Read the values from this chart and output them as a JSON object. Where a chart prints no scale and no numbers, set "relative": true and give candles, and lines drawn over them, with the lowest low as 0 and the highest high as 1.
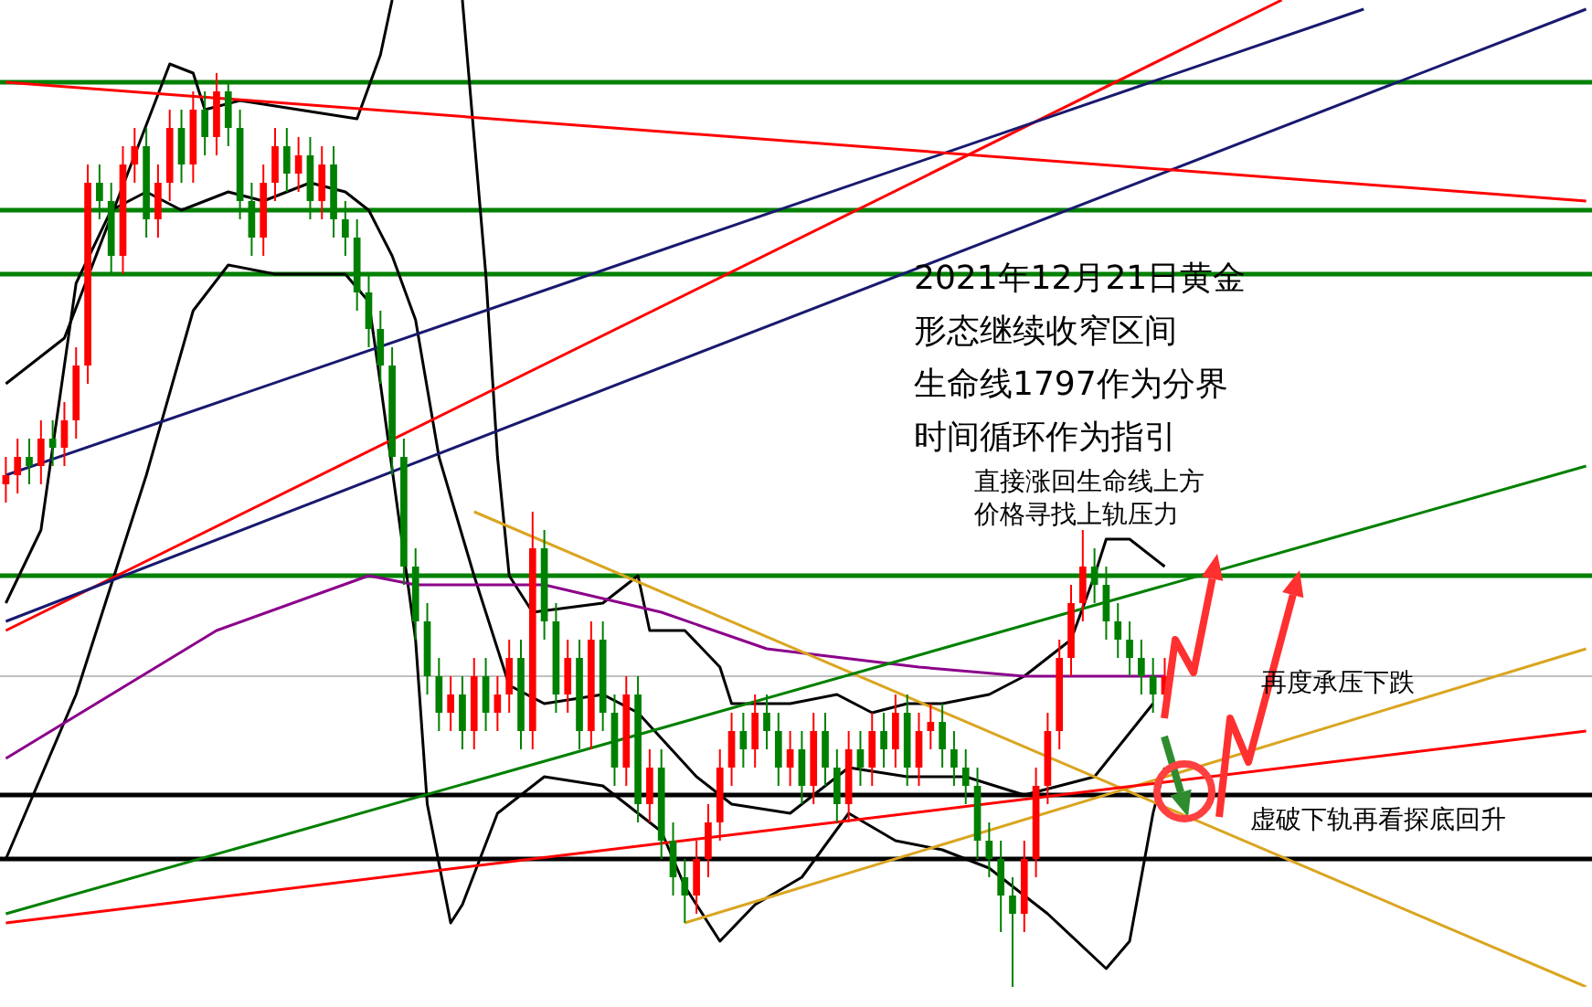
{
  "chart_data": {
    "type": "candlestick",
    "relative": true,
    "categories": [
      null,
      null,
      null,
      null,
      null,
      null,
      null,
      null,
      null,
      null,
      null,
      null,
      null,
      null,
      null,
      null,
      null,
      null,
      null,
      null,
      null,
      null,
      null,
      null,
      null,
      null,
      null,
      null,
      null,
      null,
      null,
      null,
      null,
      null,
      null,
      null,
      null,
      null,
      null,
      null,
      null,
      null,
      null,
      null,
      null,
      null,
      null,
      null,
      null,
      null,
      null,
      null,
      null,
      null,
      null,
      null,
      null,
      null,
      null,
      null,
      null,
      null,
      null,
      null,
      null,
      null,
      null,
      null,
      null,
      null,
      null,
      null,
      null,
      null,
      null,
      null,
      null,
      null,
      null,
      null,
      null,
      null,
      null,
      null,
      null,
      null,
      null,
      null,
      null,
      null,
      null,
      null,
      null,
      null,
      null,
      null,
      null,
      null,
      null,
      null,
      null,
      null,
      null,
      null,
      null,
      null,
      null,
      null,
      null,
      null,
      null,
      null,
      null,
      null,
      null,
      null,
      null,
      null,
      null,
      null,
      null,
      null,
      null,
      null,
      null,
      null,
      null,
      null,
      null,
      null,
      null,
      null,
      null,
      null,
      null,
      null
    ],
    "ohlc": [
      [
        0.55,
        0.58,
        0.53,
        0.56
      ],
      [
        0.56,
        0.6,
        0.54,
        0.58
      ],
      [
        0.58,
        0.6,
        0.55,
        0.57
      ],
      [
        0.57,
        0.62,
        0.55,
        0.6
      ],
      [
        0.6,
        0.62,
        0.57,
        0.59
      ],
      [
        0.59,
        0.64,
        0.57,
        0.62
      ],
      [
        0.62,
        0.7,
        0.6,
        0.68
      ],
      [
        0.68,
        0.9,
        0.66,
        0.88
      ],
      [
        0.88,
        0.9,
        0.84,
        0.86
      ],
      [
        0.86,
        0.88,
        0.78,
        0.8
      ],
      [
        0.8,
        0.92,
        0.78,
        0.9
      ],
      [
        0.9,
        0.94,
        0.88,
        0.92
      ],
      [
        0.92,
        0.94,
        0.82,
        0.84
      ],
      [
        0.84,
        0.9,
        0.82,
        0.88
      ],
      [
        0.88,
        0.96,
        0.86,
        0.94
      ],
      [
        0.94,
        0.96,
        0.88,
        0.9
      ],
      [
        0.9,
        0.98,
        0.88,
        0.96
      ],
      [
        0.96,
        0.98,
        0.91,
        0.93
      ],
      [
        0.93,
        1.0,
        0.91,
        0.98
      ],
      [
        0.98,
        0.99,
        0.92,
        0.94
      ],
      [
        0.94,
        0.96,
        0.84,
        0.86
      ],
      [
        0.86,
        0.88,
        0.8,
        0.82
      ],
      [
        0.82,
        0.9,
        0.8,
        0.88
      ],
      [
        0.88,
        0.94,
        0.86,
        0.92
      ],
      [
        0.92,
        0.94,
        0.87,
        0.89
      ],
      [
        0.89,
        0.93,
        0.87,
        0.91
      ],
      [
        0.91,
        0.93,
        0.84,
        0.86
      ],
      [
        0.86,
        0.92,
        0.84,
        0.9
      ],
      [
        0.9,
        0.92,
        0.82,
        0.84
      ],
      [
        0.84,
        0.86,
        0.8,
        0.82
      ],
      [
        0.82,
        0.84,
        0.74,
        0.76
      ],
      [
        0.76,
        0.78,
        0.7,
        0.72
      ],
      [
        0.72,
        0.74,
        0.66,
        0.68
      ],
      [
        0.68,
        0.7,
        0.56,
        0.58
      ],
      [
        0.58,
        0.6,
        0.44,
        0.46
      ],
      [
        0.46,
        0.48,
        0.38,
        0.4
      ],
      [
        0.4,
        0.42,
        0.32,
        0.34
      ],
      [
        0.34,
        0.36,
        0.28,
        0.3
      ],
      [
        0.3,
        0.34,
        0.28,
        0.32
      ],
      [
        0.32,
        0.34,
        0.26,
        0.28
      ],
      [
        0.28,
        0.36,
        0.26,
        0.34
      ],
      [
        0.34,
        0.36,
        0.28,
        0.3
      ],
      [
        0.3,
        0.34,
        0.28,
        0.32
      ],
      [
        0.32,
        0.38,
        0.3,
        0.36
      ],
      [
        0.36,
        0.38,
        0.26,
        0.28
      ],
      [
        0.28,
        0.52,
        0.26,
        0.48
      ],
      [
        0.48,
        0.5,
        0.38,
        0.4
      ],
      [
        0.4,
        0.42,
        0.3,
        0.32
      ],
      [
        0.32,
        0.38,
        0.3,
        0.36
      ],
      [
        0.36,
        0.38,
        0.26,
        0.28
      ],
      [
        0.28,
        0.4,
        0.26,
        0.38
      ],
      [
        0.38,
        0.4,
        0.28,
        0.3
      ],
      [
        0.3,
        0.32,
        0.22,
        0.24
      ],
      [
        0.24,
        0.34,
        0.22,
        0.32
      ],
      [
        0.32,
        0.34,
        0.18,
        0.2
      ],
      [
        0.2,
        0.26,
        0.18,
        0.24
      ],
      [
        0.24,
        0.26,
        0.14,
        0.16
      ],
      [
        0.16,
        0.18,
        0.1,
        0.12
      ],
      [
        0.12,
        0.14,
        0.07,
        0.1
      ],
      [
        0.1,
        0.16,
        0.08,
        0.14
      ],
      [
        0.14,
        0.2,
        0.12,
        0.18
      ],
      [
        0.18,
        0.26,
        0.16,
        0.24
      ],
      [
        0.24,
        0.3,
        0.22,
        0.28
      ],
      [
        0.28,
        0.3,
        0.24,
        0.26
      ],
      [
        0.26,
        0.32,
        0.24,
        0.3
      ],
      [
        0.3,
        0.32,
        0.26,
        0.28
      ],
      [
        0.28,
        0.3,
        0.22,
        0.24
      ],
      [
        0.24,
        0.28,
        0.22,
        0.26
      ],
      [
        0.26,
        0.28,
        0.2,
        0.22
      ],
      [
        0.22,
        0.3,
        0.2,
        0.28
      ],
      [
        0.28,
        0.3,
        0.22,
        0.24
      ],
      [
        0.24,
        0.26,
        0.18,
        0.2
      ],
      [
        0.2,
        0.28,
        0.18,
        0.26
      ],
      [
        0.26,
        0.28,
        0.22,
        0.24
      ],
      [
        0.24,
        0.3,
        0.22,
        0.28
      ],
      [
        0.28,
        0.3,
        0.24,
        0.26
      ],
      [
        0.26,
        0.32,
        0.24,
        0.3
      ],
      [
        0.3,
        0.32,
        0.22,
        0.24
      ],
      [
        0.24,
        0.3,
        0.22,
        0.28
      ],
      [
        0.28,
        0.31,
        0.26,
        0.29
      ],
      [
        0.29,
        0.31,
        0.24,
        0.26
      ],
      [
        0.26,
        0.28,
        0.22,
        0.24
      ],
      [
        0.24,
        0.26,
        0.2,
        0.22
      ],
      [
        0.22,
        0.24,
        0.14,
        0.16
      ],
      [
        0.16,
        0.18,
        0.12,
        0.14
      ],
      [
        0.14,
        0.16,
        0.06,
        0.1
      ],
      [
        0.1,
        0.12,
        0.0,
        0.08
      ],
      [
        0.08,
        0.16,
        0.06,
        0.14
      ],
      [
        0.14,
        0.24,
        0.12,
        0.22
      ],
      [
        0.22,
        0.3,
        0.2,
        0.28
      ],
      [
        0.28,
        0.38,
        0.26,
        0.36
      ],
      [
        0.36,
        0.44,
        0.34,
        0.42
      ],
      [
        0.42,
        0.5,
        0.4,
        0.46
      ],
      [
        0.46,
        0.48,
        0.42,
        0.44
      ],
      [
        0.44,
        0.46,
        0.38,
        0.4
      ],
      [
        0.4,
        0.42,
        0.36,
        0.38
      ],
      [
        0.38,
        0.4,
        0.34,
        0.36
      ],
      [
        0.36,
        0.38,
        0.32,
        0.34
      ],
      [
        0.34,
        0.36,
        0.3,
        0.32
      ],
      [
        0.32,
        0.36,
        0.3,
        0.34
      ],
      null,
      null,
      null,
      null,
      null,
      null,
      null,
      null,
      null,
      null,
      null,
      null,
      null,
      null,
      null,
      null,
      null,
      null,
      null,
      null,
      null,
      null,
      null,
      null,
      null,
      null,
      null,
      null,
      null,
      null,
      null,
      null,
      null,
      null,
      null,
      null
    ],
    "series": [
      {
        "type": "line",
        "color": "#ff0000",
        "values": [
          0.99,
          null,
          null,
          null,
          null,
          null,
          null,
          null,
          null,
          null,
          null,
          null,
          null,
          null,
          null,
          null,
          null,
          null,
          null,
          null,
          null,
          null,
          null,
          null,
          null,
          null,
          null,
          null,
          null,
          null,
          null,
          null,
          null,
          null,
          null,
          null,
          null,
          null,
          null,
          null,
          null,
          null,
          null,
          null,
          null,
          null,
          null,
          null,
          null,
          null,
          null,
          null,
          null,
          null,
          null,
          null,
          null,
          null,
          null,
          null,
          null,
          null,
          null,
          null,
          null,
          null,
          null,
          null,
          null,
          null,
          null,
          null,
          null,
          null,
          null,
          null,
          null,
          null,
          null,
          null,
          null,
          null,
          null,
          null,
          null,
          null,
          null,
          null,
          null,
          null,
          null,
          null,
          null,
          null,
          null,
          null,
          null,
          null,
          null,
          null,
          null,
          null,
          null,
          null,
          null,
          null,
          null,
          null,
          null,
          null,
          null,
          null,
          null,
          null,
          null,
          null,
          null,
          null,
          null,
          null,
          null,
          null,
          null,
          null,
          null,
          null,
          null,
          null,
          null,
          null,
          null,
          null,
          null,
          null,
          null,
          0.86
        ]
      },
      {
        "type": "line",
        "color": "#191970",
        "values": [
          0.56,
          null,
          null,
          null,
          null,
          null,
          null,
          null,
          null,
          null,
          null,
          null,
          null,
          null,
          null,
          null,
          null,
          null,
          null,
          null,
          null,
          null,
          null,
          null,
          null,
          null,
          null,
          null,
          null,
          null,
          null,
          null,
          null,
          null,
          null,
          null,
          null,
          null,
          null,
          null,
          null,
          null,
          null,
          null,
          null,
          null,
          null,
          null,
          null,
          null,
          null,
          null,
          null,
          null,
          null,
          null,
          null,
          null,
          null,
          null,
          null,
          null,
          null,
          null,
          null,
          null,
          null,
          null,
          null,
          null,
          null,
          null,
          null,
          null,
          null,
          null,
          null,
          null,
          null,
          null,
          null,
          null,
          null,
          null,
          null,
          null,
          null,
          null,
          null,
          null,
          null,
          null,
          null,
          null,
          null,
          null,
          null,
          null,
          null,
          null,
          null,
          null,
          null,
          null,
          null,
          null,
          null,
          null,
          null,
          null,
          null,
          null,
          null,
          null,
          null,
          null,
          1.07,
          null,
          null,
          null,
          null,
          null,
          null,
          null,
          null,
          null,
          null,
          null,
          null,
          null,
          null,
          null,
          null,
          null,
          null,
          null
        ]
      },
      {
        "type": "line",
        "color": "#191970",
        "values": [
          0.4,
          null,
          null,
          null,
          null,
          null,
          null,
          null,
          null,
          null,
          null,
          null,
          null,
          null,
          null,
          null,
          null,
          null,
          null,
          null,
          null,
          null,
          null,
          null,
          null,
          null,
          null,
          null,
          null,
          null,
          null,
          null,
          null,
          null,
          null,
          null,
          null,
          null,
          null,
          null,
          null,
          null,
          null,
          null,
          null,
          null,
          null,
          null,
          null,
          null,
          null,
          null,
          null,
          null,
          null,
          null,
          null,
          null,
          null,
          null,
          null,
          null,
          null,
          null,
          null,
          null,
          null,
          null,
          null,
          null,
          null,
          null,
          null,
          null,
          null,
          null,
          null,
          null,
          null,
          null,
          null,
          null,
          null,
          null,
          null,
          null,
          null,
          null,
          null,
          null,
          null,
          null,
          null,
          null,
          null,
          null,
          null,
          null,
          null,
          null,
          null,
          null,
          null,
          null,
          null,
          null,
          null,
          null,
          null,
          null,
          null,
          null,
          null,
          null,
          null,
          null,
          null,
          null,
          null,
          null,
          null,
          null,
          null,
          null,
          null,
          null,
          null,
          null,
          null,
          null,
          null,
          null,
          null,
          null,
          null,
          1.07
        ]
      },
      {
        "type": "line",
        "color": "#ff0000",
        "values": [
          0.39,
          null,
          null,
          null,
          null,
          null,
          null,
          null,
          null,
          null,
          null,
          null,
          null,
          null,
          null,
          null,
          null,
          null,
          null,
          null,
          null,
          null,
          null,
          null,
          null,
          null,
          null,
          null,
          null,
          null,
          null,
          null,
          null,
          null,
          null,
          null,
          null,
          null,
          null,
          null,
          null,
          null,
          null,
          null,
          null,
          null,
          null,
          null,
          null,
          null,
          null,
          null,
          null,
          null,
          null,
          null,
          null,
          null,
          null,
          null,
          null,
          null,
          null,
          null,
          null,
          null,
          null,
          null,
          null,
          null,
          null,
          null,
          null,
          null,
          null,
          null,
          null,
          null,
          null,
          null,
          null,
          null,
          null,
          null,
          null,
          null,
          null,
          null,
          null,
          null,
          null,
          null,
          null,
          null,
          null,
          null,
          null,
          null,
          null,
          null,
          null,
          null,
          null,
          null,
          null,
          null,
          null,
          null,
          null,
          1.08,
          null,
          null,
          null,
          null,
          null,
          null,
          null,
          null,
          null,
          null,
          null,
          null,
          null,
          null,
          null,
          null,
          null,
          null,
          null,
          null,
          null,
          null,
          null,
          null,
          null,
          null
        ]
      },
      {
        "type": "line",
        "color": "#008000",
        "values": [
          0.08,
          null,
          null,
          null,
          null,
          null,
          null,
          null,
          null,
          null,
          null,
          null,
          null,
          null,
          null,
          null,
          null,
          null,
          null,
          null,
          null,
          null,
          null,
          null,
          null,
          null,
          null,
          null,
          null,
          null,
          null,
          null,
          null,
          null,
          null,
          null,
          null,
          null,
          null,
          null,
          null,
          null,
          null,
          null,
          null,
          null,
          null,
          null,
          null,
          null,
          null,
          null,
          null,
          null,
          null,
          null,
          null,
          null,
          null,
          null,
          null,
          null,
          null,
          null,
          null,
          null,
          null,
          null,
          null,
          null,
          null,
          null,
          null,
          null,
          null,
          null,
          null,
          null,
          null,
          null,
          null,
          null,
          null,
          null,
          null,
          null,
          null,
          null,
          null,
          null,
          null,
          null,
          null,
          null,
          null,
          null,
          null,
          null,
          null,
          null,
          null,
          null,
          null,
          null,
          null,
          null,
          null,
          null,
          null,
          null,
          null,
          null,
          null,
          null,
          null,
          null,
          null,
          null,
          null,
          null,
          null,
          null,
          null,
          null,
          null,
          null,
          null,
          null,
          null,
          null,
          null,
          null,
          null,
          null,
          null,
          0.57
        ]
      },
      {
        "type": "line",
        "color": "#ff0000",
        "values": [
          0.07,
          null,
          null,
          null,
          null,
          null,
          null,
          null,
          null,
          null,
          null,
          null,
          null,
          null,
          null,
          null,
          null,
          null,
          null,
          null,
          null,
          null,
          null,
          null,
          null,
          null,
          null,
          null,
          null,
          null,
          null,
          null,
          null,
          null,
          null,
          null,
          null,
          null,
          null,
          null,
          null,
          null,
          null,
          null,
          null,
          null,
          null,
          null,
          null,
          null,
          null,
          null,
          null,
          null,
          null,
          null,
          null,
          null,
          null,
          null,
          null,
          null,
          null,
          null,
          null,
          null,
          null,
          null,
          null,
          null,
          null,
          null,
          null,
          null,
          null,
          null,
          null,
          null,
          null,
          null,
          null,
          null,
          null,
          null,
          null,
          null,
          null,
          null,
          null,
          null,
          null,
          null,
          null,
          null,
          null,
          null,
          null,
          null,
          null,
          null,
          null,
          null,
          null,
          null,
          null,
          null,
          null,
          null,
          null,
          null,
          null,
          null,
          null,
          null,
          null,
          null,
          null,
          null,
          null,
          null,
          null,
          null,
          null,
          null,
          null,
          null,
          null,
          null,
          null,
          null,
          null,
          null,
          null,
          null,
          null,
          0.28
        ]
      },
      {
        "type": "line",
        "color": "#daa520",
        "values": [
          null,
          null,
          null,
          null,
          null,
          null,
          null,
          null,
          null,
          null,
          null,
          null,
          null,
          null,
          null,
          null,
          null,
          null,
          null,
          null,
          null,
          null,
          null,
          null,
          null,
          null,
          null,
          null,
          null,
          null,
          null,
          null,
          null,
          null,
          null,
          null,
          null,
          null,
          null,
          null,
          0.52,
          null,
          null,
          null,
          null,
          null,
          null,
          null,
          null,
          null,
          null,
          null,
          null,
          null,
          null,
          null,
          null,
          null,
          null,
          null,
          null,
          null,
          null,
          null,
          null,
          null,
          null,
          null,
          null,
          null,
          null,
          null,
          null,
          null,
          null,
          null,
          null,
          null,
          null,
          null,
          null,
          null,
          null,
          null,
          null,
          null,
          null,
          null,
          null,
          null,
          null,
          null,
          null,
          null,
          null,
          null,
          null,
          null,
          null,
          null,
          null,
          null,
          null,
          null,
          null,
          null,
          null,
          null,
          null,
          null,
          null,
          null,
          null,
          null,
          null,
          null,
          null,
          null,
          null,
          null,
          null,
          null,
          null,
          null,
          null,
          null,
          null,
          null,
          null,
          null,
          null,
          null,
          null,
          null,
          null,
          0.0
        ]
      },
      {
        "type": "line",
        "color": "#daa520",
        "values": [
          null,
          null,
          null,
          null,
          null,
          null,
          null,
          null,
          null,
          null,
          null,
          null,
          null,
          null,
          null,
          null,
          null,
          null,
          null,
          null,
          null,
          null,
          null,
          null,
          null,
          null,
          null,
          null,
          null,
          null,
          null,
          null,
          null,
          null,
          null,
          null,
          null,
          null,
          null,
          null,
          null,
          null,
          null,
          null,
          null,
          null,
          null,
          null,
          null,
          null,
          null,
          null,
          null,
          null,
          null,
          null,
          null,
          null,
          0.07,
          null,
          null,
          null,
          null,
          null,
          null,
          null,
          null,
          null,
          null,
          null,
          null,
          null,
          null,
          null,
          null,
          null,
          null,
          null,
          null,
          null,
          null,
          null,
          null,
          null,
          null,
          null,
          null,
          null,
          null,
          null,
          null,
          null,
          null,
          null,
          null,
          null,
          null,
          null,
          null,
          null,
          null,
          null,
          null,
          null,
          null,
          null,
          null,
          null,
          null,
          null,
          null,
          null,
          null,
          null,
          null,
          null,
          null,
          null,
          null,
          null,
          null,
          null,
          null,
          null,
          null,
          null,
          null,
          null,
          null,
          null,
          null,
          null,
          null,
          null,
          null,
          0.37
        ]
      },
      {
        "type": "line",
        "color": "#8b008b",
        "values": [
          0.25,
          null,
          null,
          null,
          null,
          null,
          null,
          null,
          null,
          0.32,
          null,
          null,
          null,
          null,
          null,
          null,
          null,
          null,
          0.39,
          null,
          null,
          null,
          null,
          null,
          null,
          null,
          null,
          null,
          null,
          null,
          null,
          0.45,
          null,
          null,
          null,
          0.44,
          null,
          null,
          null,
          null,
          null,
          null,
          null,
          null,
          null,
          null,
          0.44,
          null,
          null,
          null,
          null,
          null,
          null,
          null,
          null,
          null,
          0.41,
          null,
          null,
          null,
          null,
          null,
          null,
          null,
          null,
          0.37,
          null,
          null,
          null,
          null,
          null,
          null,
          null,
          null,
          null,
          null,
          null,
          null,
          0.35,
          null,
          null,
          null,
          null,
          null,
          null,
          null,
          null,
          0.34,
          null,
          null,
          null,
          null,
          null,
          null,
          null,
          null,
          0.34,
          null,
          null,
          0.34,
          null,
          null,
          null,
          null,
          null,
          null,
          null,
          null,
          null,
          null,
          null,
          null,
          null,
          null,
          null,
          null,
          null,
          null,
          null,
          null,
          null,
          null,
          null,
          null,
          null,
          null,
          null,
          null,
          null,
          null,
          null,
          null,
          null,
          null,
          null,
          null
        ]
      },
      {
        "type": "line",
        "color": "#000000",
        "values": [
          0.66,
          null,
          null,
          null,
          null,
          0.71,
          null,
          null,
          null,
          null,
          null,
          null,
          null,
          null,
          1.01,
          null,
          1.0,
          0.96,
          null,
          null,
          0.97,
          null,
          null,
          null,
          null,
          null,
          null,
          null,
          null,
          null,
          0.95,
          null,
          1.02,
          1.08,
          null,
          null,
          null,
          null,
          null,
          null,
          null,
          null,
          null,
          null,
          null,
          null,
          null,
          null,
          null,
          null,
          null,
          null,
          null,
          null,
          null,
          null,
          null,
          null,
          null,
          null,
          null,
          null,
          null,
          null,
          null,
          null,
          null,
          null,
          null,
          null,
          null,
          null,
          null,
          null,
          null,
          null,
          null,
          null,
          null,
          null,
          null,
          null,
          null,
          null,
          null,
          null,
          null,
          null,
          null,
          null,
          null,
          null,
          null,
          null,
          null,
          null,
          null,
          null,
          null,
          null,
          null,
          null,
          null,
          null,
          null,
          null,
          null,
          null,
          null,
          null,
          null,
          null,
          null,
          null,
          null,
          null,
          null,
          null,
          null,
          null,
          null,
          null,
          null,
          null,
          null,
          null,
          null,
          null,
          null,
          null,
          null,
          null,
          null,
          null,
          null,
          null
        ]
      },
      {
        "type": "line",
        "color": "#000000",
        "values": [
          null,
          null,
          null,
          null,
          null,
          null,
          null,
          null,
          null,
          null,
          null,
          null,
          null,
          null,
          null,
          null,
          null,
          null,
          null,
          null,
          null,
          null,
          null,
          null,
          null,
          null,
          null,
          null,
          null,
          null,
          null,
          null,
          null,
          null,
          null,
          null,
          null,
          null,
          null,
          1.08,
          null,
          0.78,
          0.58,
          0.45,
          null,
          0.41,
          null,
          null,
          null,
          null,
          null,
          0.42,
          null,
          null,
          0.45,
          0.39,
          null,
          null,
          0.39,
          null,
          null,
          0.35,
          0.31,
          null,
          null,
          null,
          null,
          0.31,
          null,
          null,
          null,
          0.32,
          null,
          null,
          0.3,
          null,
          null,
          0.31,
          null,
          null,
          0.31,
          null,
          null,
          null,
          0.32,
          null,
          null,
          0.34,
          null,
          null,
          null,
          0.38,
          null,
          0.45,
          0.49,
          null,
          0.49,
          null,
          null,
          0.46,
          null,
          null,
          null,
          null,
          null,
          null,
          null,
          null,
          null,
          null,
          null,
          null,
          null,
          null,
          null,
          null,
          null,
          null,
          null,
          null,
          null,
          null,
          null,
          null,
          null,
          null,
          null,
          null,
          null,
          null,
          null,
          null,
          null,
          null,
          null,
          null
        ]
      },
      {
        "type": "line",
        "color": "#000000",
        "values": [
          0.42,
          null,
          null,
          0.5,
          null,
          null,
          0.77,
          null,
          null,
          0.85,
          null,
          null,
          0.87,
          null,
          null,
          0.85,
          null,
          null,
          null,
          0.87,
          null,
          null,
          0.86,
          null,
          null,
          null,
          0.88,
          null,
          null,
          0.87,
          null,
          0.85,
          null,
          0.8,
          null,
          0.73,
          null,
          0.58,
          null,
          null,
          0.45,
          null,
          null,
          0.33,
          null,
          null,
          0.31,
          null,
          null,
          null,
          null,
          0.32,
          null,
          null,
          0.3,
          null,
          null,
          null,
          null,
          0.23,
          null,
          null,
          0.2,
          null,
          null,
          null,
          null,
          0.19,
          null,
          null,
          null,
          null,
          0.24,
          null,
          null,
          null,
          null,
          0.23,
          null,
          null,
          null,
          null,
          0.23,
          null,
          null,
          null,
          null,
          0.21,
          null,
          null,
          null,
          null,
          null,
          0.23,
          null,
          null,
          null,
          null,
          0.31,
          null,
          null,
          null,
          null,
          null,
          null,
          null,
          null,
          null,
          null,
          null,
          null,
          null,
          null,
          null,
          null,
          null,
          null,
          null,
          null,
          null,
          null,
          null,
          null,
          null,
          null,
          null,
          null,
          null,
          null,
          null,
          null,
          null,
          null,
          null,
          null,
          null
        ]
      },
      {
        "type": "line",
        "color": "#000000",
        "values": [
          0.14,
          null,
          null,
          null,
          null,
          null,
          0.32,
          null,
          null,
          null,
          null,
          null,
          0.56,
          null,
          null,
          null,
          0.74,
          null,
          null,
          0.79,
          null,
          null,
          null,
          0.78,
          null,
          null,
          null,
          null,
          null,
          0.78,
          null,
          0.75,
          0.66,
          null,
          null,
          0.38,
          0.2,
          null,
          0.07,
          0.09,
          null,
          null,
          0.19,
          null,
          null,
          null,
          0.23,
          null,
          null,
          null,
          null,
          0.22,
          null,
          null,
          null,
          null,
          0.17,
          null,
          0.11,
          null,
          null,
          0.05,
          null,
          null,
          0.09,
          null,
          null,
          null,
          0.12,
          null,
          null,
          null,
          0.19,
          null,
          null,
          null,
          0.16,
          null,
          null,
          null,
          0.15,
          null,
          null,
          null,
          0.13,
          null,
          null,
          null,
          null,
          0.08,
          null,
          null,
          null,
          null,
          0.02,
          null,
          0.05,
          null,
          0.19,
          0.24,
          null,
          null,
          null,
          null,
          null,
          null,
          null,
          null,
          null,
          null,
          null,
          null,
          null,
          null,
          null,
          null,
          null,
          null,
          null,
          null,
          null,
          null,
          null,
          null,
          null,
          null,
          null,
          null,
          null,
          null,
          null,
          null,
          null,
          null,
          null,
          null
        ]
      }
    ],
    "ref_lines": [
      {
        "axis": "y",
        "value": 0.99,
        "color": "#008000"
      },
      {
        "axis": "y",
        "value": 0.85,
        "color": "#008000"
      },
      {
        "axis": "y",
        "value": 0.78,
        "color": "#008000"
      },
      {
        "axis": "y",
        "value": 0.45,
        "color": "#008000"
      },
      {
        "axis": "y",
        "value": 0.34,
        "color": "#c0c0c0"
      },
      {
        "axis": "y",
        "value": 0.21,
        "color": "#000000"
      },
      {
        "axis": "y",
        "value": 0.14,
        "color": "#000000"
      }
    ],
    "annotations": [
      "2021年12月21日黄金",
      "形态继续收窄区间",
      "生命线1797作为分界",
      "时间循环作为指引",
      "直接涨回生命线上方",
      "价格寻找上轨压力",
      "再度承压下跌",
      "虚破下轨再看探底回升"
    ]
  }
}
